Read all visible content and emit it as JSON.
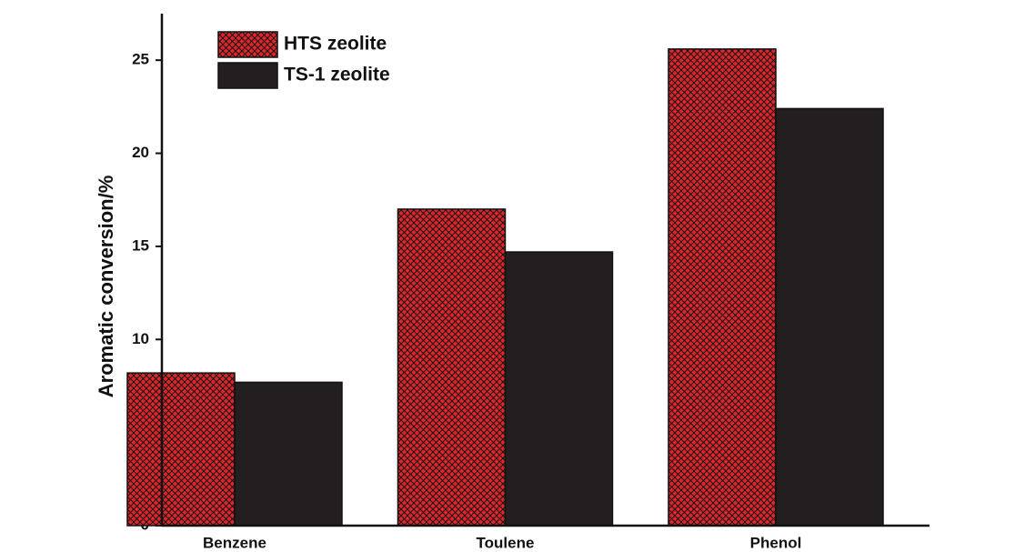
{
  "chart_data": {
    "type": "bar",
    "y_label": "Aromatic conversion/%",
    "categories": [
      "Benzene",
      "Toulene",
      "Phenol"
    ],
    "series": [
      {
        "name": "HTS zeolite",
        "color": "#e0262b",
        "values": [
          8.2,
          17.0,
          25.6
        ]
      },
      {
        "name": "TS-1 zeolite",
        "color": "#231f20",
        "values": [
          7.7,
          14.7,
          22.4
        ]
      }
    ],
    "ylim": [
      0,
      27.5
    ],
    "yticks": [
      0,
      5,
      10,
      15,
      20,
      25
    ],
    "legend": "upper left",
    "hatch": [
      true,
      false
    ]
  }
}
